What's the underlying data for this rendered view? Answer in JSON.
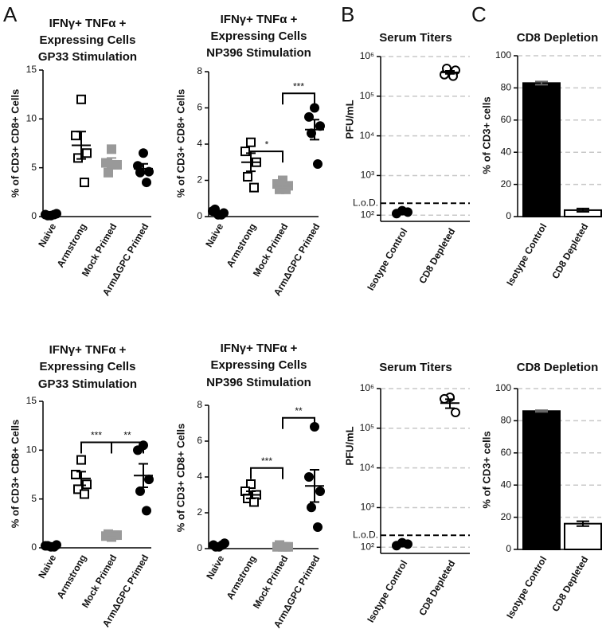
{
  "chart_data": [
    {
      "type": "dot",
      "panel_label": "A",
      "title": [
        "IFNγ+  TNFα +",
        "Expressing  Cells",
        "GP33  Stimulation"
      ],
      "y_label": "% of CD3+ CD8+ Cells",
      "categories": [
        "Naive",
        "Armstrong",
        "Mock Primed",
        "ArmΔGPC Primed"
      ],
      "points": [
        [
          0.1,
          0.2,
          0.3,
          0.1,
          0.2
        ],
        [
          12.0,
          8.3,
          6.5,
          6.0,
          3.5
        ],
        [
          6.9,
          5.5,
          5.3,
          4.5,
          5.3
        ],
        [
          6.5,
          5.2,
          4.6,
          4.5,
          3.5
        ]
      ],
      "means": [
        0.2,
        7.3,
        5.5,
        4.9
      ],
      "errors": [
        0.05,
        1.4,
        0.5,
        0.5
      ],
      "markers": [
        "circle",
        "square-open",
        "square",
        "circle"
      ],
      "colors": [
        "#000000",
        "#000000",
        "#999999",
        "#000000"
      ],
      "ylim": [
        0,
        15
      ],
      "yticks": [
        0,
        5,
        10,
        15
      ]
    },
    {
      "type": "dot",
      "title": [
        "IFNγ+  TNFα +",
        "Expressing  Cells",
        "NP396  Stimulation"
      ],
      "y_label": "% of CD3+ CD8+ Cells",
      "categories": [
        "Naive",
        "Armstrong",
        "Mock Primed",
        "ArmΔGPC Primed"
      ],
      "points": [
        [
          0.1,
          0.3,
          0.2,
          0.4,
          0.1
        ],
        [
          4.1,
          3.6,
          3.0,
          2.2,
          1.6
        ],
        [
          2.0,
          1.8,
          1.7,
          1.5,
          1.5
        ],
        [
          6.0,
          5.5,
          5.0,
          4.6,
          2.9
        ]
      ],
      "means": [
        0.2,
        3.0,
        1.7,
        4.8
      ],
      "errors": [
        0.05,
        0.5,
        0.1,
        0.55
      ],
      "markers": [
        "circle",
        "square-open",
        "square",
        "circle"
      ],
      "colors": [
        "#000000",
        "#000000",
        "#999999",
        "#000000"
      ],
      "ylim": [
        0,
        8
      ],
      "yticks": [
        0,
        2,
        4,
        6,
        8
      ],
      "annotations": [
        "*",
        "***"
      ]
    },
    {
      "type": "dot",
      "panel_label": "B",
      "title": [
        "Serum Titers"
      ],
      "y_label": "PFU/mL",
      "categories": [
        "Isotype Control",
        "CD8 Depleted"
      ],
      "points": [
        [
          130,
          110,
          120
        ],
        [
          400000,
          350000,
          450000,
          500000,
          320000
        ]
      ],
      "means": [
        120,
        400000
      ],
      "errors": [
        8,
        35000
      ],
      "markers": [
        "circle",
        "circle-open"
      ],
      "colors": [
        "#000000",
        "#000000"
      ],
      "log_scale": true,
      "grid": true,
      "ylim": [
        70,
        1000000
      ],
      "yticks": [
        {
          "value": 100,
          "label": "10²"
        },
        {
          "value": 1000,
          "label": "10³"
        },
        {
          "value": 10000,
          "label": "10⁴"
        },
        {
          "value": 100000,
          "label": "10⁵"
        },
        {
          "value": 1000000,
          "label": "10⁶"
        }
      ],
      "reference_line": {
        "label": "L.o.D.",
        "value": 200
      }
    },
    {
      "type": "bar",
      "panel_label": "C",
      "title": [
        "CD8 Depletion"
      ],
      "y_label": "% of  CD3+ cells",
      "categories": [
        "Isotype Control",
        "CD8 Depleted"
      ],
      "values": [
        83,
        4
      ],
      "errors": [
        1,
        1
      ],
      "colors": [
        "#000000",
        "#ffffff"
      ],
      "grid": true,
      "ylim": [
        0,
        100
      ],
      "yticks": [
        0,
        20,
        40,
        60,
        80,
        100
      ]
    },
    {
      "type": "dot",
      "title": [
        "IFNγ+  TNFα +",
        "Expressing  Cells",
        "GP33  Stimulation"
      ],
      "y_label": "% of CD3+ CD8+ Cells",
      "categories": [
        "Naive",
        "Armstrong",
        "Mock Primed",
        "ArmΔGPC Primed"
      ],
      "points": [
        [
          0.1,
          0.2,
          0.3,
          0.2,
          0.1
        ],
        [
          9.0,
          7.5,
          6.5,
          6.0,
          5.5
        ],
        [
          1.1,
          1.2,
          1.3,
          1.4,
          1.3
        ],
        [
          10.5,
          10.0,
          7.0,
          5.8,
          3.8
        ]
      ],
      "means": [
        0.2,
        7.1,
        1.3,
        7.4
      ],
      "errors": [
        0.05,
        0.7,
        0.05,
        1.2
      ],
      "markers": [
        "circle",
        "square-open",
        "square",
        "circle"
      ],
      "colors": [
        "#000000",
        "#000000",
        "#999999",
        "#000000"
      ],
      "ylim": [
        0,
        15
      ],
      "yticks": [
        0,
        5,
        10,
        15
      ],
      "annotations": [
        "***",
        "**"
      ]
    },
    {
      "type": "dot",
      "title": [
        "IFNγ+  TNFα +",
        "Expressing  Cells",
        "NP396  Stimulation"
      ],
      "y_label": "% of CD3+ CD8+ Cells",
      "categories": [
        "Naive",
        "Armstrong",
        "Mock Primed",
        "ArmΔGPC Primed"
      ],
      "points": [
        [
          0.1,
          0.2,
          0.3,
          0.1,
          0.2
        ],
        [
          3.6,
          3.2,
          3.0,
          2.8,
          2.6
        ],
        [
          0.1,
          0.1,
          0.1,
          0.2,
          0.1
        ],
        [
          6.8,
          4.0,
          3.2,
          2.3,
          1.2
        ]
      ],
      "means": [
        0.2,
        3.0,
        0.1,
        3.5
      ],
      "errors": [
        0.05,
        0.2,
        0.03,
        0.9
      ],
      "markers": [
        "circle",
        "square-open",
        "square",
        "circle"
      ],
      "colors": [
        "#000000",
        "#000000",
        "#999999",
        "#000000"
      ],
      "ylim": [
        0,
        8
      ],
      "yticks": [
        0,
        2,
        4,
        6,
        8
      ],
      "annotations": [
        "***",
        "**"
      ]
    },
    {
      "type": "dot",
      "title": [
        "Serum Titers"
      ],
      "y_label": "PFU/mL",
      "categories": [
        "Isotype Control",
        "CD8 Depleted"
      ],
      "points": [
        [
          130,
          110,
          120
        ],
        [
          600000,
          550000,
          250000
        ]
      ],
      "means": [
        120,
        430000
      ],
      "errors": [
        8,
        110000
      ],
      "markers": [
        "circle",
        "circle-open"
      ],
      "colors": [
        "#000000",
        "#000000"
      ],
      "log_scale": true,
      "grid": true,
      "ylim": [
        70,
        1000000
      ],
      "yticks": [
        {
          "value": 100,
          "label": "10²"
        },
        {
          "value": 1000,
          "label": "10³"
        },
        {
          "value": 10000,
          "label": "10⁴"
        },
        {
          "value": 100000,
          "label": "10⁵"
        },
        {
          "value": 1000000,
          "label": "10⁶"
        }
      ],
      "reference_line": {
        "label": "L.o.D.",
        "value": 200
      }
    },
    {
      "type": "bar",
      "title": [
        "CD8 Depletion"
      ],
      "y_label": "% of  CD3+ cells",
      "categories": [
        "Isotype Control",
        "CD8 Depleted"
      ],
      "values": [
        86,
        16
      ],
      "errors": [
        0.5,
        1.5
      ],
      "colors": [
        "#000000",
        "#ffffff"
      ],
      "grid": true,
      "ylim": [
        0,
        100
      ],
      "yticks": [
        0,
        20,
        40,
        60,
        80,
        100
      ]
    }
  ]
}
